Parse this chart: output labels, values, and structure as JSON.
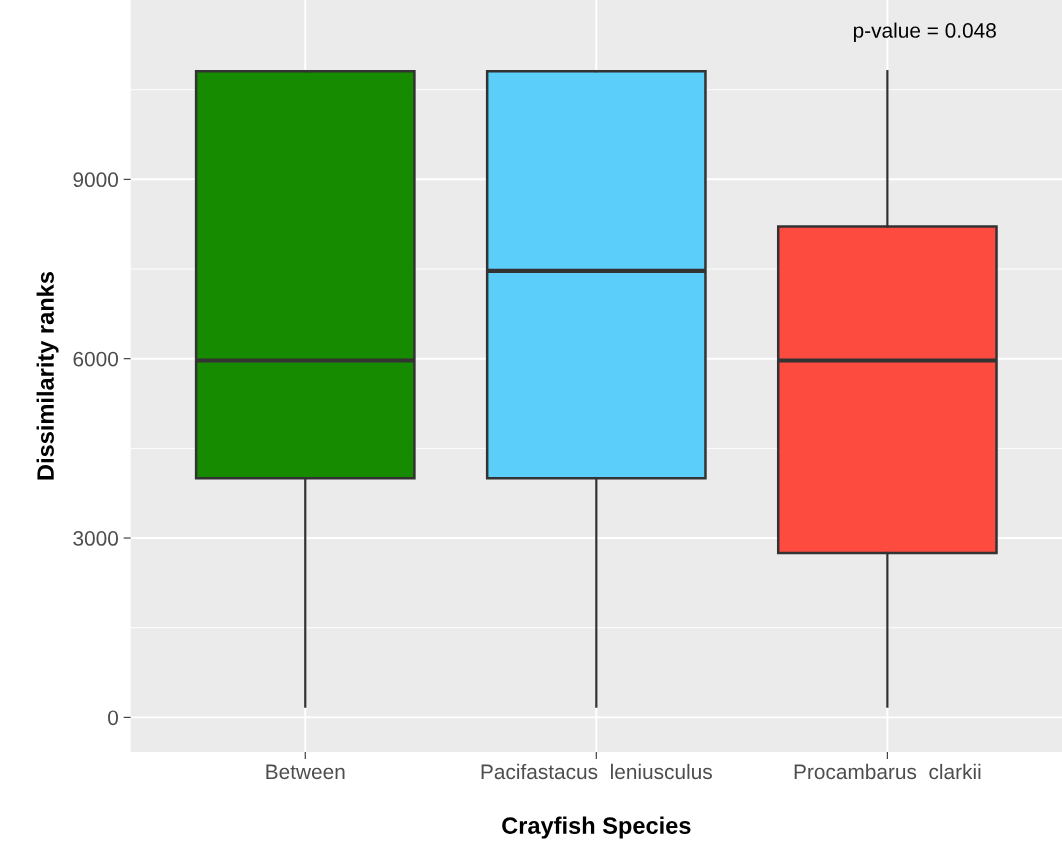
{
  "chart_data": {
    "type": "box",
    "xlabel": "Crayfish Species",
    "ylabel": "Dissimilarity ranks",
    "categories": [
      "Between",
      "Pacifastacus  leniusculus",
      "Procambarus  clarkii"
    ],
    "colors": [
      "#178b00",
      "#5bcefa",
      "#fe4b40"
    ],
    "boxes": [
      {
        "low": 180,
        "q1": 4000,
        "median": 5970,
        "q3": 10810,
        "high": 10810
      },
      {
        "low": 180,
        "q1": 4000,
        "median": 7470,
        "q3": 10810,
        "high": 10810
      },
      {
        "low": 180,
        "q1": 2750,
        "median": 5970,
        "q3": 8210,
        "high": 10810
      }
    ],
    "ylim": [
      -580,
      12000
    ],
    "yticks": [
      0,
      3000,
      6000,
      9000
    ],
    "grid": true,
    "annotations": [
      "p-value = 0.048"
    ]
  }
}
